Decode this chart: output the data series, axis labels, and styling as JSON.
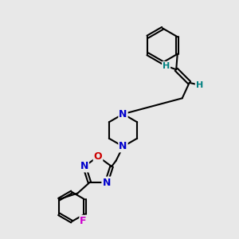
{
  "bg_color": "#e8e8e8",
  "atom_colors": {
    "N": "#0000cc",
    "O": "#cc0000",
    "F": "#cc00cc",
    "H": "#008080",
    "C": "#000000"
  },
  "bond_color": "#000000",
  "bond_width": 1.5,
  "figsize": [
    3.0,
    3.0
  ],
  "dpi": 100
}
